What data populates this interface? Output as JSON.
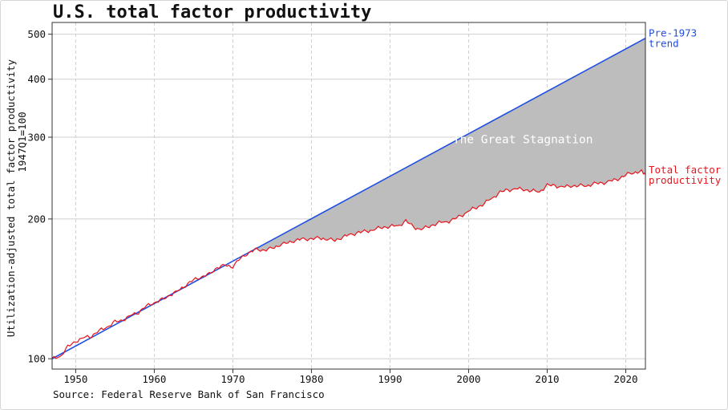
{
  "chart_data": {
    "type": "line",
    "title": "U.S. total factor productivity",
    "ylabel_line1": "Utilization-adjusted total factor productivity",
    "ylabel_line2": "1947Q1=100",
    "xlabel": "",
    "y_scale": "log",
    "xlim": [
      1947,
      2022.5
    ],
    "ylim": [
      95,
      530
    ],
    "x_ticks": [
      1950,
      1960,
      1970,
      1980,
      1990,
      2000,
      2010,
      2020
    ],
    "x_tick_labels": [
      "1950",
      "1960",
      "1970",
      "1980",
      "1990",
      "2000",
      "2010",
      "2020"
    ],
    "y_ticks": [
      100,
      200,
      300,
      400,
      500
    ],
    "y_tick_labels": [
      "100",
      "200",
      "300",
      "400",
      "500"
    ],
    "grid": true,
    "annotation": "The Great Stagnation",
    "series": [
      {
        "name": "Pre-1973 trend",
        "label_line1": "Pre-1973",
        "label_line2": "trend",
        "color": "#1f4fe0",
        "x": [
          1947,
          2022.5
        ],
        "values": [
          100,
          490
        ]
      },
      {
        "name": "Total factor productivity",
        "label_line1": "Total factor",
        "label_line2": "productivity",
        "color": "#e8141c",
        "x": [
          1947.0,
          1948.0,
          1949.0,
          1950.0,
          1951.0,
          1952.0,
          1953.0,
          1954.0,
          1955.0,
          1956.0,
          1957.0,
          1958.0,
          1959.0,
          1960.0,
          1961.0,
          1962.0,
          1963.0,
          1964.0,
          1965.0,
          1966.0,
          1967.0,
          1968.0,
          1969.0,
          1970.0,
          1971.0,
          1972.0,
          1973.0,
          1974.0,
          1975.0,
          1976.0,
          1977.0,
          1978.0,
          1979.0,
          1980.0,
          1981.0,
          1982.0,
          1983.0,
          1984.0,
          1985.0,
          1986.0,
          1987.0,
          1988.0,
          1989.0,
          1990.0,
          1991.0,
          1992.0,
          1993.0,
          1994.0,
          1995.0,
          1996.0,
          1997.0,
          1998.0,
          1999.0,
          2000.0,
          2001.0,
          2002.0,
          2003.0,
          2004.0,
          2005.0,
          2006.0,
          2007.0,
          2008.0,
          2009.0,
          2010.0,
          2011.0,
          2012.0,
          2013.0,
          2014.0,
          2015.0,
          2016.0,
          2017.0,
          2018.0,
          2019.0,
          2020.0,
          2021.0,
          2022.0,
          2022.5
        ],
        "values": [
          100,
          101,
          106,
          109,
          111,
          112,
          115,
          117,
          120,
          121,
          124,
          126,
          130,
          132,
          134,
          137,
          140,
          144,
          148,
          150,
          152,
          157,
          159,
          158,
          165,
          169,
          172,
          171,
          173,
          176,
          178,
          180,
          181,
          181,
          182,
          181,
          180,
          183,
          185,
          187,
          188,
          190,
          192,
          193,
          193,
          198,
          192,
          190,
          193,
          196,
          197,
          199,
          203,
          208,
          212,
          216,
          222,
          228,
          231,
          232,
          232,
          230,
          229,
          236,
          236,
          234,
          236,
          236,
          236,
          238,
          239,
          241,
          244,
          249,
          252,
          253,
          249
        ]
      }
    ]
  },
  "footer": {
    "source": "Source: Federal Reserve Bank of San Francisco"
  }
}
